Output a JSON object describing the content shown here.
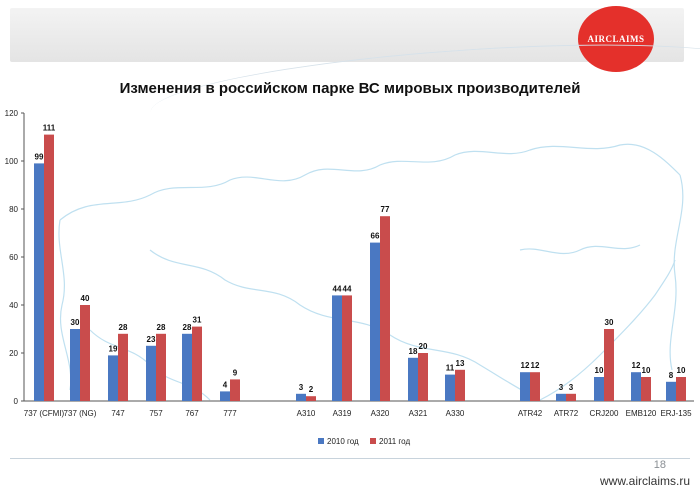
{
  "header": {
    "logo_text": "AIRCLAIMS"
  },
  "footer": {
    "page_number": "18",
    "website": "www.airclaims.ru"
  },
  "colors": {
    "series_2010": "#4a78c2",
    "series_2011": "#c94c4c",
    "logo": "#e4302b"
  },
  "chart_data": {
    "type": "bar",
    "title": "Изменения в российском парке ВС мировых производителей",
    "ylim": [
      0,
      120
    ],
    "yticks": [
      0,
      20,
      40,
      60,
      80,
      100,
      120
    ],
    "categories": [
      "737 (CFMI)",
      "737 (NG)",
      "747",
      "757",
      "767",
      "777",
      "A310",
      "A319",
      "A320",
      "A321",
      "A330",
      "ATR42",
      "ATR72",
      "CRJ200",
      "EMB120",
      "ERJ-135"
    ],
    "series": [
      {
        "name": "2010 год",
        "values": [
          99,
          30,
          19,
          23,
          28,
          4,
          3,
          44,
          66,
          18,
          11,
          12,
          3,
          10,
          12,
          8
        ]
      },
      {
        "name": "2011 год",
        "values": [
          111,
          40,
          28,
          28,
          31,
          9,
          2,
          44,
          77,
          20,
          13,
          12,
          3,
          30,
          10,
          10
        ]
      }
    ],
    "legend_position": "bottom",
    "grid": false
  }
}
